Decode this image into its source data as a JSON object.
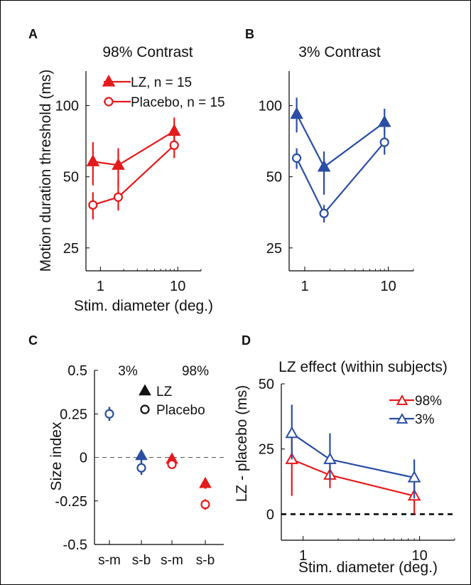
{
  "chart_data": [
    {
      "panel": "A",
      "type": "line",
      "title": "98% Contrast",
      "xlabel": "Stim. diameter (deg.)",
      "ylabel": "Motion duration threshold (ms)",
      "x_scale": "log",
      "y_scale": "log",
      "xlim": [
        0.65,
        20
      ],
      "ylim": [
        20,
        140
      ],
      "x_ticks": [
        1,
        10
      ],
      "x_ticklabels": [
        "1",
        "10"
      ],
      "y_ticks": [
        25,
        50,
        100
      ],
      "y_ticklabels": [
        "25",
        "50",
        "100"
      ],
      "legend_placement": "top-left",
      "series": [
        {
          "name": "LZ, n = 15",
          "marker": "filled-triangle",
          "color": "#e41a1c",
          "x": [
            0.8,
            1.7,
            9
          ],
          "y": [
            58,
            56,
            78
          ],
          "err_low": [
            46,
            46,
            68
          ],
          "err_high": [
            70,
            66,
            89
          ]
        },
        {
          "name": "Placebo, n = 15",
          "marker": "open-circle",
          "color": "#e41a1c",
          "x": [
            0.8,
            1.7,
            9
          ],
          "y": [
            38,
            41,
            68
          ],
          "err_low": [
            33,
            36,
            60
          ],
          "err_high": [
            43,
            48,
            76
          ]
        }
      ]
    },
    {
      "panel": "B",
      "type": "line",
      "title": "3% Contrast",
      "xlabel": "",
      "ylabel": "",
      "x_scale": "log",
      "y_scale": "log",
      "xlim": [
        0.65,
        20
      ],
      "ylim": [
        20,
        140
      ],
      "x_ticks": [
        1,
        10
      ],
      "x_ticklabels": [
        "1",
        "10"
      ],
      "y_ticks": [
        25,
        50,
        100
      ],
      "y_ticklabels": [
        "25",
        "50",
        "100"
      ],
      "series": [
        {
          "marker": "filled-triangle",
          "color": "#2a4ea3",
          "x": [
            0.8,
            1.7,
            9
          ],
          "y": [
            92,
            55,
            85
          ],
          "err_low": [
            77,
            42,
            76
          ],
          "err_high": [
            108,
            64,
            97
          ]
        },
        {
          "marker": "open-circle",
          "color": "#2a4ea3",
          "x": [
            0.8,
            1.7,
            9
          ],
          "y": [
            60,
            35,
            70
          ],
          "err_low": [
            54,
            32,
            62
          ],
          "err_high": [
            66,
            38,
            78
          ]
        }
      ]
    },
    {
      "panel": "C",
      "type": "scatter",
      "ylabel": "Size index",
      "ylim": [
        -0.5,
        0.5
      ],
      "y_ticks": [
        -0.5,
        -0.25,
        0,
        0.25,
        0.5
      ],
      "y_ticklabels": [
        "-0.5",
        "-0.25",
        "0",
        "0.25",
        "0.5"
      ],
      "categories": [
        "s-m",
        "s-b",
        "s-m",
        "s-b"
      ],
      "group_labels": [
        "3%",
        "98%"
      ],
      "legend": [
        {
          "label": "LZ",
          "marker": "filled-triangle"
        },
        {
          "label": "Placebo",
          "marker": "open-circle"
        }
      ],
      "series": [
        {
          "name": "LZ",
          "marker": "filled-triangle",
          "colors": [
            "#2a4ea3",
            "#2a4ea3",
            "#e41a1c",
            "#e41a1c"
          ],
          "values": [
            null,
            0.01,
            -0.01,
            -0.15
          ],
          "err": [
            0,
            0.03,
            0.02,
            0.03
          ]
        },
        {
          "name": "Placebo",
          "marker": "open-circle",
          "colors": [
            "#2a4ea3",
            "#2a4ea3",
            "#e41a1c",
            "#e41a1c"
          ],
          "values": [
            0.25,
            -0.06,
            -0.04,
            -0.27
          ],
          "err": [
            0.04,
            0.04,
            0.02,
            0.03
          ]
        }
      ]
    },
    {
      "panel": "D",
      "type": "line",
      "title": "LZ effect (within subjects)",
      "xlabel": "Stim. diameter (deg.)",
      "ylabel": "LZ - placebo (ms)",
      "x_scale": "log",
      "xlim": [
        0.65,
        20
      ],
      "ylim": [
        -10,
        50
      ],
      "x_ticks": [
        1,
        10
      ],
      "x_ticklabels": [
        "1",
        "10"
      ],
      "y_ticks": [
        0,
        25,
        50
      ],
      "y_ticklabels": [
        "0",
        "25",
        "50"
      ],
      "reference_line": 0,
      "legend_placement": "top-right",
      "series": [
        {
          "name": "98%",
          "marker": "open-triangle",
          "color": "#e41a1c",
          "x": [
            0.8,
            1.7,
            9
          ],
          "y": [
            21,
            15,
            7
          ],
          "err_low": [
            7,
            10,
            0
          ],
          "err_high": [
            31,
            21,
            13
          ]
        },
        {
          "name": "3%",
          "marker": "open-triangle",
          "color": "#2a4ea3",
          "x": [
            0.8,
            1.7,
            9
          ],
          "y": [
            31,
            21,
            14
          ],
          "err_low": [
            21,
            13,
            6
          ],
          "err_high": [
            42,
            31,
            21
          ]
        }
      ]
    }
  ],
  "panel_labels": [
    "A",
    "B",
    "C",
    "D"
  ]
}
